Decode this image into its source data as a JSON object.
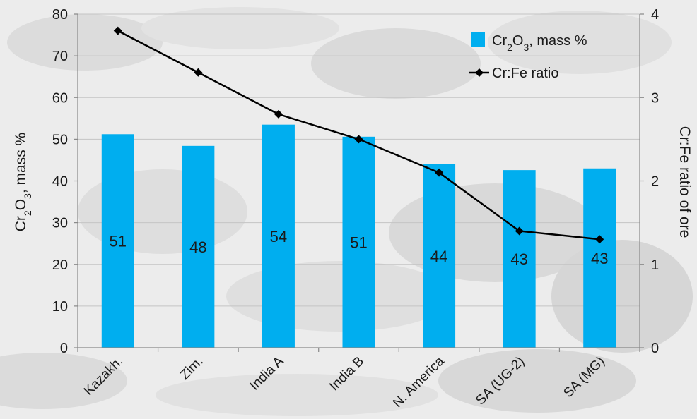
{
  "chart_data": {
    "type": "bar",
    "categories": [
      "Kazakh.",
      "Zim.",
      "India A",
      "India B",
      "N. America",
      "SA (UG-2)",
      "SA (MG)"
    ],
    "series": [
      {
        "name": "Cr2O3, mass %",
        "type": "bar",
        "axis": "left",
        "values": [
          51.2,
          48.4,
          53.5,
          50.6,
          44.0,
          42.6,
          43.0
        ],
        "labels": [
          "51",
          "48",
          "54",
          "51",
          "44",
          "43",
          "43"
        ]
      },
      {
        "name": "Cr:Fe ratio",
        "type": "line",
        "axis": "right",
        "values": [
          3.8,
          3.3,
          2.8,
          2.5,
          2.1,
          1.4,
          1.3
        ]
      }
    ],
    "ylabel": "Cr2O3, mass %",
    "ylabel_right": "Cr:Fe ratio of ore",
    "ylim": [
      0,
      80
    ],
    "ylim_right": [
      0,
      4
    ],
    "yticks": [
      "0",
      "10",
      "20",
      "30",
      "40",
      "50",
      "60",
      "70",
      "80"
    ],
    "yticks_right": [
      "0",
      "1",
      "2",
      "3",
      "4"
    ],
    "grid": true,
    "legend": "top-right",
    "colors": {
      "bar": "#00aeef",
      "line": "#000000",
      "grid": "#c4c4c4"
    }
  }
}
